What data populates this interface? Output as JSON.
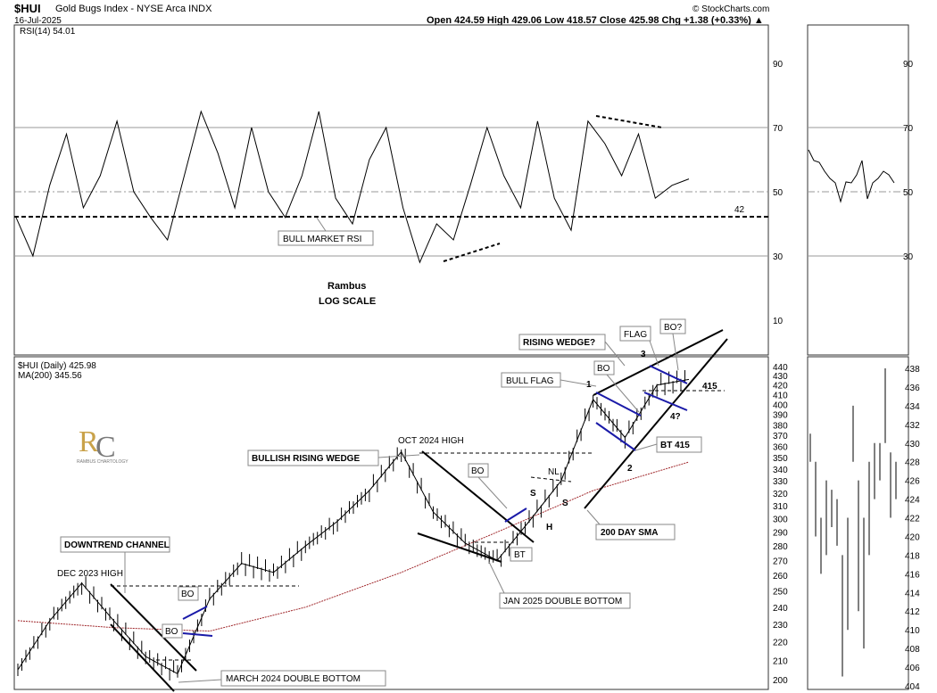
{
  "header": {
    "symbol": "$HUI",
    "name": "Gold Bugs Index - NYSE Arca INDX",
    "date": "16-Jul-2025",
    "ohlc": "Open 424.59  High 429.06  Low 418.57  Close 425.98  Chg +1.38 (+0.33%) ▲",
    "credit": "© StockCharts.com"
  },
  "rsi_panel": {
    "legend": "RSI(14) 54.01",
    "ticks": [
      "90",
      "70",
      "50",
      "30",
      "10"
    ],
    "label_42": "42",
    "bull_market_rsi": "BULL MARKET RSI",
    "rambus": "Rambus",
    "log_scale": "LOG SCALE"
  },
  "price_panel": {
    "legend_price": "$HUI (Daily) 425.98",
    "legend_ma": "MA(200) 345.56",
    "logo_text": "RAMBUS CHARTOLOGY",
    "ticks": [
      "440",
      "430",
      "420",
      "410",
      "400",
      "390",
      "380",
      "370",
      "360",
      "350",
      "340",
      "330",
      "320",
      "310",
      "300",
      "290",
      "280",
      "270",
      "260",
      "250",
      "240",
      "230",
      "220",
      "210",
      "200"
    ]
  },
  "side_panel": {
    "ticks": [
      "438",
      "436",
      "434",
      "432",
      "430",
      "428",
      "426",
      "424",
      "422",
      "420",
      "418",
      "416",
      "414",
      "412",
      "410",
      "408",
      "406",
      "404"
    ],
    "rsi_ticks": [
      "90",
      "70",
      "50",
      "30"
    ]
  },
  "annotations": {
    "downtrend_channel": "DOWNTREND CHANNEL",
    "dec_2023_high": "DEC 2023 HIGH",
    "bo1": "BO",
    "bo2": "BO",
    "march_2024": "MARCH 2024 DOUBLE BOTTOM",
    "bullish_rising_wedge": "BULLISH RISING WEDGE",
    "oct_2024_high": "OCT 2024 HIGH",
    "bo3": "BO",
    "bt1": "BT",
    "jan_2025": "JAN 2025 DOUBLE BOTTOM",
    "s1": "S",
    "s2": "S",
    "h": "H",
    "nl": "NL",
    "sma": "200 DAY SMA",
    "bull_flag": "BULL FLAG",
    "bo4": "BO",
    "rising_wedge": "RISING WEDGE?",
    "flag": "FLAG",
    "bo5": "BO?",
    "bt415": "BT 415",
    "n1": "1",
    "n2": "2",
    "n3": "3",
    "n4": "4?",
    "v415": "415"
  },
  "chart_data": {
    "type": "line",
    "title": "$HUI Gold Bugs Index - NYSE Arca INDX",
    "log_scale": true,
    "ylim": [
      198,
      445
    ],
    "series": [
      {
        "name": "$HUI (Daily)",
        "x": [
          "2023-10",
          "2023-11",
          "2023-12",
          "2024-01",
          "2024-02",
          "2024-03",
          "2024-04",
          "2024-05",
          "2024-06",
          "2024-07",
          "2024-08",
          "2024-09",
          "2024-10",
          "2024-11",
          "2024-12",
          "2025-01",
          "2025-02",
          "2025-03",
          "2025-04",
          "2025-05",
          "2025-06",
          "2025-07"
        ],
        "values": [
          205,
          232,
          255,
          232,
          212,
          203,
          245,
          268,
          262,
          280,
          298,
          322,
          355,
          305,
          282,
          270,
          298,
          330,
          405,
          368,
          420,
          426
        ]
      },
      {
        "name": "MA(200)",
        "x": [
          "2023-10",
          "2024-01",
          "2024-04",
          "2024-07",
          "2024-10",
          "2025-01",
          "2025-04",
          "2025-07"
        ],
        "values": [
          232,
          228,
          226,
          240,
          262,
          290,
          322,
          346
        ]
      }
    ],
    "rsi": {
      "name": "RSI(14)",
      "last": 54.01,
      "ylim": [
        0,
        100
      ],
      "values": [
        42,
        30,
        52,
        68,
        45,
        55,
        72,
        50,
        42,
        35,
        55,
        75,
        62,
        45,
        70,
        50,
        42,
        55,
        75,
        48,
        40,
        60,
        70,
        45,
        28,
        40,
        35,
        52,
        70,
        55,
        45,
        72,
        48,
        38,
        72,
        65,
        55,
        68,
        48,
        52,
        54
      ]
    }
  }
}
